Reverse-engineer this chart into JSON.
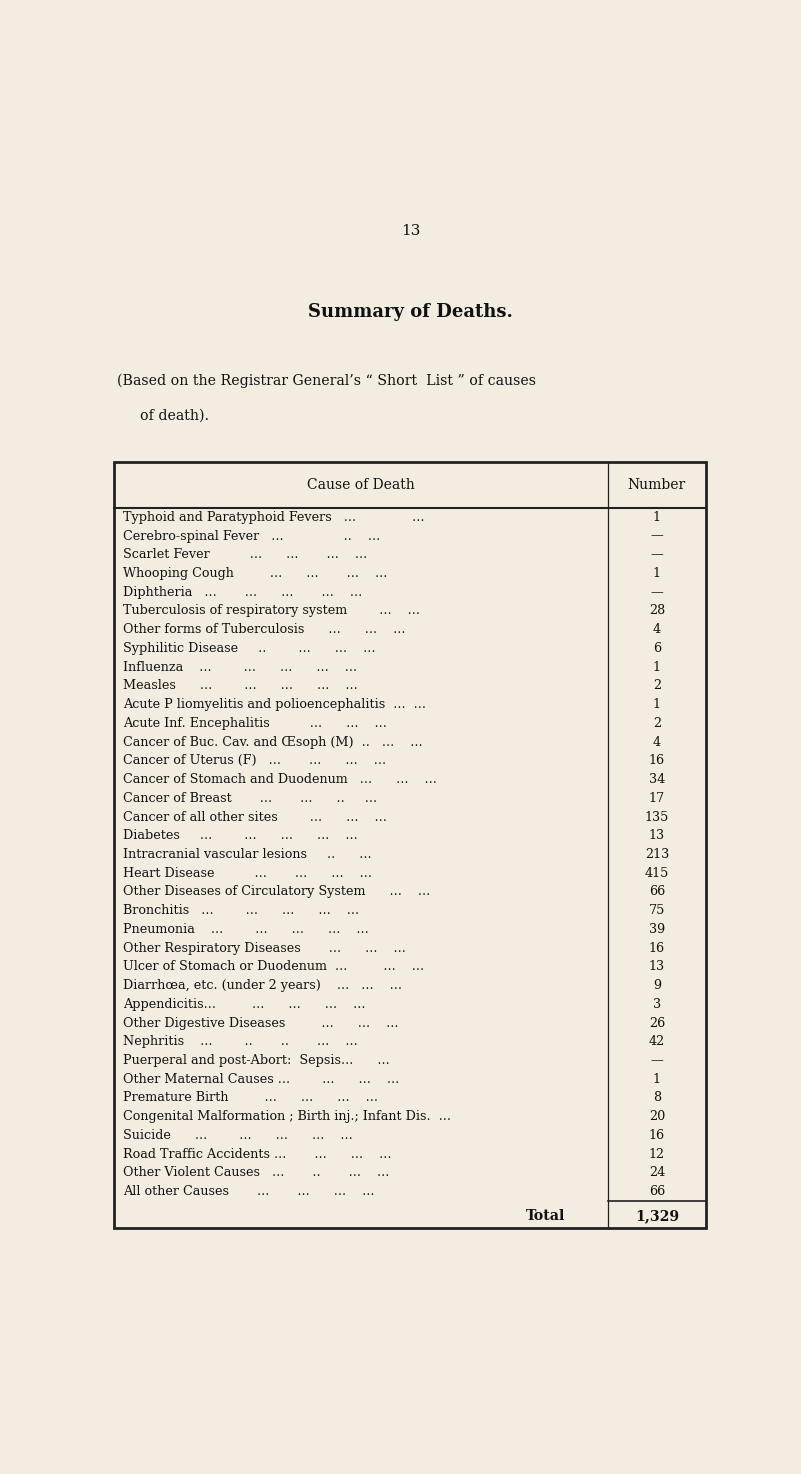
{
  "page_number": "13",
  "title": "Summary of Deaths.",
  "subtitle_line1": "(Based on the Registrar General’s “ Short  List ” of causes",
  "subtitle_line2": "  of death).",
  "col_header_left": "Cause of Death",
  "col_header_right": "Number",
  "rows": [
    [
      "Typhoid and Paratyphoid Fevers   ...              ...",
      "1"
    ],
    [
      "Cerebro-spinal Fever   ...               ..    ...",
      "—"
    ],
    [
      "Scarlet Fever          ...      ...       ...    ...",
      "—"
    ],
    [
      "Whooping Cough         ...      ...       ...    ...",
      "1"
    ],
    [
      "Diphtheria   ...       ...      ...       ...    ...",
      "—"
    ],
    [
      "Tuberculosis of respiratory system        ...    ...",
      "28"
    ],
    [
      "Other forms of Tuberculosis      ...      ...    ...",
      "4"
    ],
    [
      "Syphilitic Disease     ..        ...      ...    ...",
      "6"
    ],
    [
      "Influenza    ...        ...      ...      ...    ...",
      "1"
    ],
    [
      "Measles      ...        ...      ...      ...    ...",
      "2"
    ],
    [
      "Acute P liomyelitis and polioencephalitis  ...  ...",
      "1"
    ],
    [
      "Acute Inf. Encephalitis          ...      ...    ...",
      "2"
    ],
    [
      "Cancer of Buc. Cav. and Œsoph (M)  ..   ...    ...",
      "4"
    ],
    [
      "Cancer of Uterus (F)   ...       ...      ...    ...",
      "16"
    ],
    [
      "Cancer of Stomach and Duodenum   ...      ...    ...",
      "34"
    ],
    [
      "Cancer of Breast       ...       ...      ..     ...",
      "17"
    ],
    [
      "Cancer of all other sites        ...      ...    ...",
      "135"
    ],
    [
      "Diabetes     ...        ...      ...      ...    ...",
      "13"
    ],
    [
      "Intracranial vascular lesions     ..      ...      ",
      "213"
    ],
    [
      "Heart Disease          ...       ...      ...    ...",
      "415"
    ],
    [
      "Other Diseases of Circulatory System      ...    ...",
      "66"
    ],
    [
      "Bronchitis   ...        ...      ...      ...    ...",
      "75"
    ],
    [
      "Pneumonia    ...        ...      ...      ...    ...",
      "39"
    ],
    [
      "Other Respiratory Diseases       ...      ...    ...",
      "16"
    ],
    [
      "Ulcer of Stomach or Duodenum  ...         ...    ...",
      "13"
    ],
    [
      "Diarrhœa, etc. (under 2 years)    ...   ...    ...",
      "9"
    ],
    [
      "Appendicitis...         ...      ...      ...    ...",
      "3"
    ],
    [
      "Other Digestive Diseases         ...      ...    ...",
      "26"
    ],
    [
      "Nephritis    ...        ..       ..       ...    ...",
      "42"
    ],
    [
      "Puerperal and post-Abort:  Sepsis...      ...      ",
      "—"
    ],
    [
      "Other Maternal Causes ...        ...      ...    ...",
      "1"
    ],
    [
      "Premature Birth         ...      ...      ...    ...",
      "8"
    ],
    [
      "Congenital Malformation ; Birth inj.; Infant Dis.  ...",
      "20"
    ],
    [
      "Suicide      ...        ...      ...      ...    ...",
      "16"
    ],
    [
      "Road Traffic Accidents ...       ...      ...    ...",
      "12"
    ],
    [
      "Other Violent Causes   ...       ..       ...    ...",
      "24"
    ],
    [
      "All other Causes       ...       ...      ...    ...",
      "66"
    ]
  ],
  "total_label": "Total",
  "total_value": "1,329",
  "background_color": "#f2ede0",
  "text_color": "#111111",
  "border_color": "#222222",
  "font_size": 9.2,
  "header_font_size": 10.0,
  "title_font_size": 13,
  "page_num_font_size": 11
}
